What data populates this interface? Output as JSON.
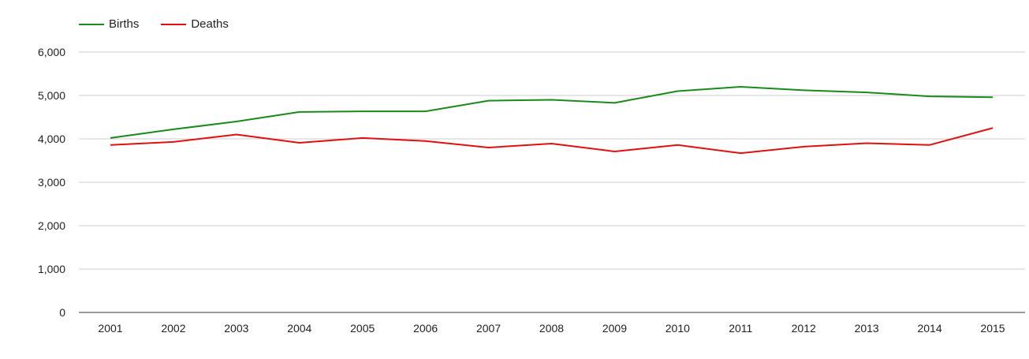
{
  "chart_data": {
    "type": "line",
    "title": "",
    "xlabel": "",
    "ylabel": "",
    "categories": [
      "2001",
      "2002",
      "2003",
      "2004",
      "2005",
      "2006",
      "2007",
      "2008",
      "2009",
      "2010",
      "2011",
      "2012",
      "2013",
      "2014",
      "2015"
    ],
    "series": [
      {
        "name": "Births",
        "color": "#1a8a1a",
        "values": [
          4020,
          4220,
          4400,
          4620,
          4635,
          4635,
          4880,
          4900,
          4830,
          5100,
          5200,
          5120,
          5070,
          4980,
          4960
        ]
      },
      {
        "name": "Deaths",
        "color": "#e01010",
        "values": [
          3860,
          3930,
          4100,
          3910,
          4020,
          3950,
          3800,
          3890,
          3710,
          3860,
          3670,
          3820,
          3900,
          3860,
          4250
        ]
      }
    ],
    "ylim": [
      0,
      6000
    ],
    "yticks": [
      "0",
      "1,000",
      "2,000",
      "3,000",
      "4,000",
      "5,000",
      "6,000"
    ],
    "ytick_values": [
      0,
      1000,
      2000,
      3000,
      4000,
      5000,
      6000
    ],
    "grid": true,
    "legend_position": "top-left"
  }
}
